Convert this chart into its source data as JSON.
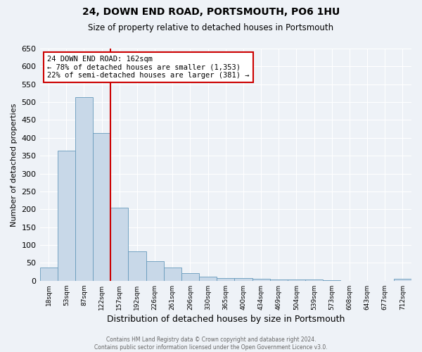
{
  "title": "24, DOWN END ROAD, PORTSMOUTH, PO6 1HU",
  "subtitle": "Size of property relative to detached houses in Portsmouth",
  "xlabel": "Distribution of detached houses by size in Portsmouth",
  "ylabel": "Number of detached properties",
  "bar_values": [
    38,
    365,
    515,
    413,
    205,
    83,
    54,
    37,
    22,
    11,
    8,
    8,
    5,
    3,
    3,
    4,
    1,
    0,
    0,
    0,
    5
  ],
  "bar_labels": [
    "18sqm",
    "53sqm",
    "87sqm",
    "122sqm",
    "157sqm",
    "192sqm",
    "226sqm",
    "261sqm",
    "296sqm",
    "330sqm",
    "365sqm",
    "400sqm",
    "434sqm",
    "469sqm",
    "504sqm",
    "539sqm",
    "573sqm",
    "608sqm",
    "643sqm",
    "677sqm",
    "712sqm"
  ],
  "bar_color": "#c8d8e8",
  "bar_edge_color": "#6699bb",
  "vline_color": "#cc0000",
  "annotation_text": "24 DOWN END ROAD: 162sqm\n← 78% of detached houses are smaller (1,353)\n22% of semi-detached houses are larger (381) →",
  "annotation_box_color": "#cc0000",
  "ylim": [
    0,
    650
  ],
  "yticks": [
    0,
    50,
    100,
    150,
    200,
    250,
    300,
    350,
    400,
    450,
    500,
    550,
    600,
    650
  ],
  "footer": "Contains HM Land Registry data © Crown copyright and database right 2024.\nContains public sector information licensed under the Open Government Licence v3.0.",
  "bg_color": "#eef2f7",
  "plot_bg_color": "#eef2f7",
  "vline_bar_index": 4
}
